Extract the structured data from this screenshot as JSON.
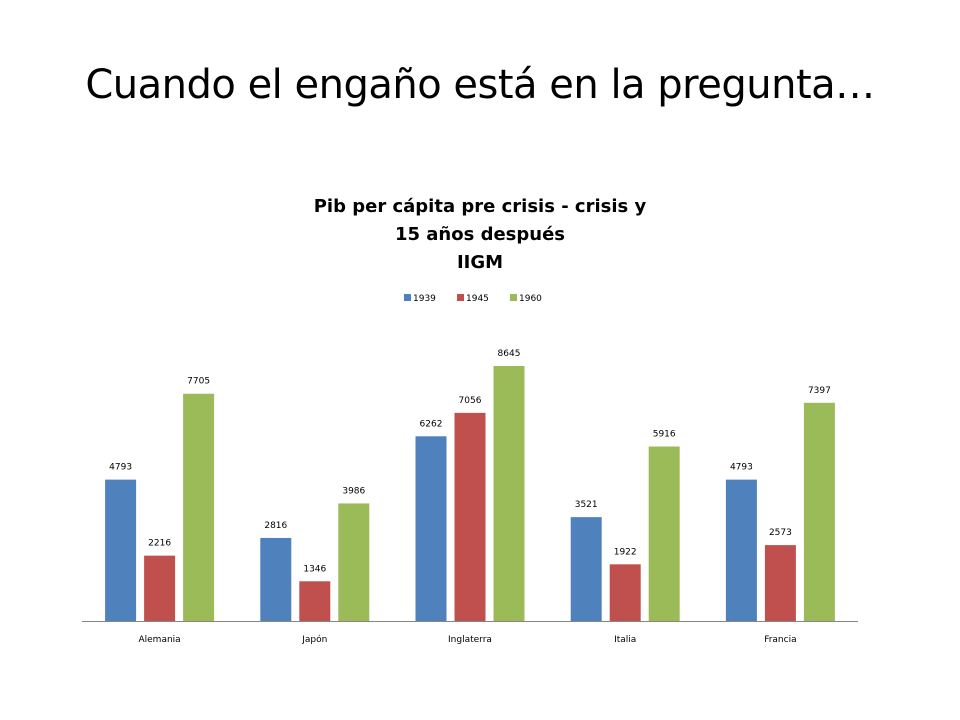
{
  "slide": {
    "title": "Cuando el engaño está en la pregunta…"
  },
  "chart_data": {
    "type": "bar",
    "title_lines": [
      "Pib per cápita pre crisis - crisis y",
      "15 años después",
      "IIGM"
    ],
    "categories": [
      "Alemania",
      "Japón",
      "Inglaterra",
      "Italia",
      "Francia"
    ],
    "series": [
      {
        "name": "1939",
        "color": "#4f81bd",
        "values": [
          4793,
          2816,
          6262,
          3521,
          4793
        ]
      },
      {
        "name": "1945",
        "color": "#c0504d",
        "values": [
          2216,
          1346,
          7056,
          1922,
          2573
        ]
      },
      {
        "name": "1960",
        "color": "#9bbb59",
        "values": [
          7705,
          3986,
          8645,
          5916,
          7397
        ]
      }
    ],
    "data_labels": true,
    "legend_position": "top",
    "grid": false,
    "ylim": [
      0,
      10000
    ]
  }
}
